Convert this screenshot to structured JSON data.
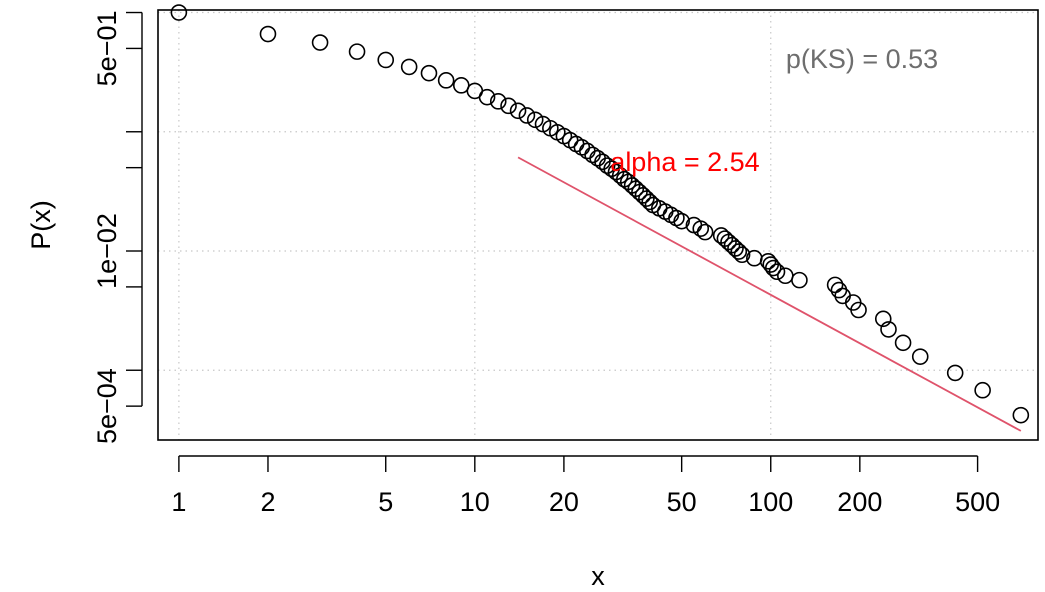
{
  "chart_data": {
    "type": "scatter",
    "xlabel": "x",
    "ylabel": "P(x)",
    "x_scale": "log",
    "y_scale": "log",
    "xlim": [
      0.85,
      800
    ],
    "ylim": [
      0.00026,
      1.05
    ],
    "x_ticks": [
      {
        "value": 1,
        "label": "1"
      },
      {
        "value": 2,
        "label": "2"
      },
      {
        "value": 5,
        "label": "5"
      },
      {
        "value": 10,
        "label": "10"
      },
      {
        "value": 20,
        "label": "20"
      },
      {
        "value": 50,
        "label": "50"
      },
      {
        "value": 100,
        "label": "100"
      },
      {
        "value": 200,
        "label": "200"
      },
      {
        "value": 500,
        "label": "500"
      }
    ],
    "y_ticks": [
      {
        "value": 0.5,
        "label": "5e−01"
      },
      {
        "value": 0.01,
        "label": "1e−02"
      },
      {
        "value": 0.0005,
        "label": "5e−04"
      }
    ],
    "y_minor_ticks": [
      1,
      0.1,
      0.05,
      0.005,
      0.001
    ],
    "grid": true,
    "grid_x": [
      1,
      10,
      100
    ],
    "grid_y": [
      1,
      0.1,
      0.01,
      0.001
    ],
    "annotations": [
      {
        "text": "alpha = 2.54",
        "color": "#FF0000"
      },
      {
        "text": "p(KS) = 0.53",
        "color": "#6E6E6E"
      }
    ],
    "fit_line": {
      "color": "#DF536B",
      "points": [
        [
          14,
          0.061
        ],
        [
          700,
          0.00031
        ]
      ]
    },
    "series": [
      {
        "marker": "open-circle",
        "color": "#000000",
        "points": [
          [
            1,
            1.0
          ],
          [
            2,
            0.66
          ],
          [
            3,
            0.56
          ],
          [
            4,
            0.47
          ],
          [
            5,
            0.4
          ],
          [
            6,
            0.35
          ],
          [
            7,
            0.31
          ],
          [
            8,
            0.27
          ],
          [
            9,
            0.245
          ],
          [
            10,
            0.22
          ],
          [
            11,
            0.195
          ],
          [
            12,
            0.18
          ],
          [
            13,
            0.165
          ],
          [
            14,
            0.15
          ],
          [
            15,
            0.137
          ],
          [
            16,
            0.126
          ],
          [
            17,
            0.116
          ],
          [
            18,
            0.107
          ],
          [
            19,
            0.099
          ],
          [
            20,
            0.092
          ],
          [
            21,
            0.085
          ],
          [
            22,
            0.079
          ],
          [
            23,
            0.074
          ],
          [
            24,
            0.069
          ],
          [
            25,
            0.064
          ],
          [
            26,
            0.06
          ],
          [
            27,
            0.056
          ],
          [
            28,
            0.052
          ],
          [
            29,
            0.049
          ],
          [
            30,
            0.046
          ],
          [
            31,
            0.043
          ],
          [
            32,
            0.04
          ],
          [
            33,
            0.038
          ],
          [
            34,
            0.0355
          ],
          [
            35,
            0.0333
          ],
          [
            36,
            0.0312
          ],
          [
            37,
            0.0293
          ],
          [
            38,
            0.0275
          ],
          [
            39,
            0.0258
          ],
          [
            40,
            0.0243
          ],
          [
            42,
            0.0228
          ],
          [
            44,
            0.0214
          ],
          [
            46,
            0.0201
          ],
          [
            48,
            0.0189
          ],
          [
            50,
            0.0178
          ],
          [
            55,
            0.0165
          ],
          [
            58,
            0.0154
          ],
          [
            60,
            0.0144
          ],
          [
            68,
            0.0135
          ],
          [
            70,
            0.0127
          ],
          [
            72,
            0.0119
          ],
          [
            74,
            0.0112
          ],
          [
            76,
            0.0105
          ],
          [
            78,
            0.0099
          ],
          [
            80,
            0.0093
          ],
          [
            88,
            0.0087
          ],
          [
            98,
            0.0082
          ],
          [
            100,
            0.0077
          ],
          [
            102,
            0.0072
          ],
          [
            105,
            0.0067
          ],
          [
            112,
            0.0062
          ],
          [
            125,
            0.0057
          ],
          [
            165,
            0.0052
          ],
          [
            170,
            0.0047
          ],
          [
            175,
            0.0042
          ],
          [
            190,
            0.0037
          ],
          [
            198,
            0.0032
          ],
          [
            240,
            0.0027
          ],
          [
            250,
            0.0022
          ],
          [
            280,
            0.0017
          ],
          [
            320,
            0.0013
          ],
          [
            420,
            0.00095
          ],
          [
            520,
            0.00068
          ],
          [
            700,
            0.00042
          ]
        ]
      }
    ]
  }
}
